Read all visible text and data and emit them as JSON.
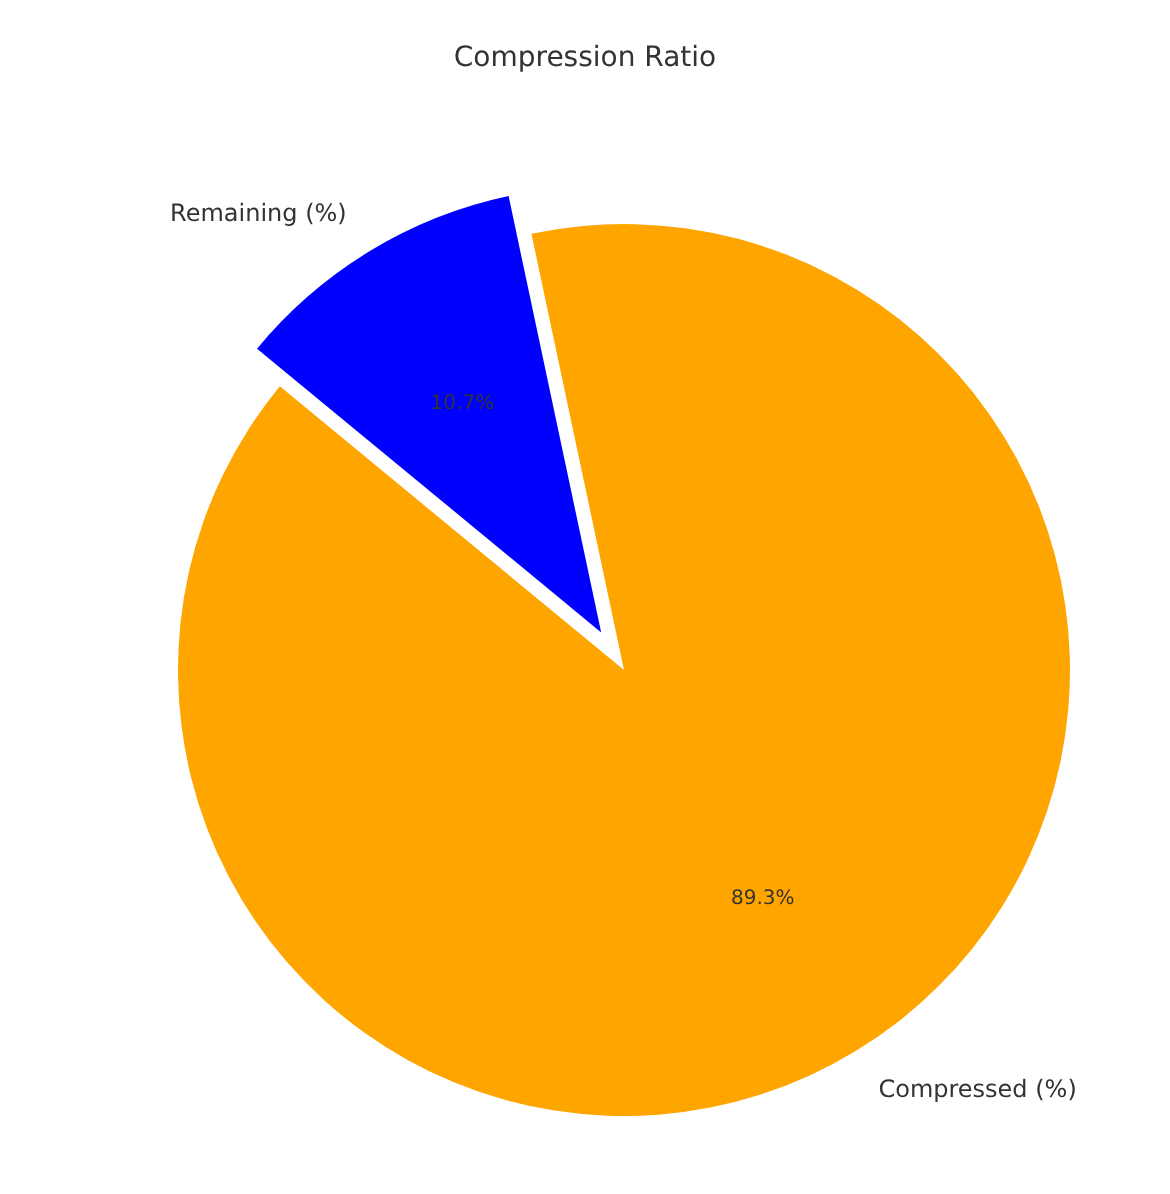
{
  "chart_data": {
    "type": "pie",
    "title": "Compression Ratio",
    "categories": [
      "Remaining (%)",
      "Compressed (%)"
    ],
    "values": [
      10.7,
      89.3
    ],
    "colors": [
      "#0000ff",
      "#ffa500"
    ],
    "value_labels": [
      "10.7%",
      "89.3%"
    ],
    "legend": false
  }
}
